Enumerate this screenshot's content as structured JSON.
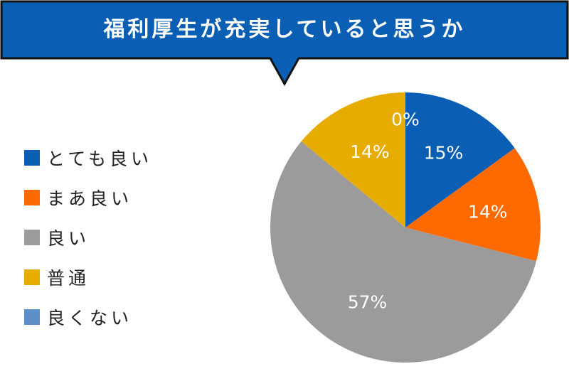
{
  "title": "福利厚生が充実していると思うか",
  "colors": {
    "banner": "#0a5fb4"
  },
  "chart_data": {
    "type": "pie",
    "start_angle_deg": 0,
    "direction": "clockwise",
    "legend_position": "left",
    "slices": [
      {
        "label": "とても良い",
        "value": 15,
        "display": "15%",
        "color": "#0a5fb4"
      },
      {
        "label": "まあ良い",
        "value": 14,
        "display": "14%",
        "color": "#ff6a00"
      },
      {
        "label": "良い",
        "value": 57,
        "display": "57%",
        "color": "#9b9b9b"
      },
      {
        "label": "普通",
        "value": 14,
        "display": "14%",
        "color": "#e6ac00"
      },
      {
        "label": "良くない",
        "value": 0,
        "display": "0%",
        "color": "#5b8fc7"
      }
    ]
  }
}
